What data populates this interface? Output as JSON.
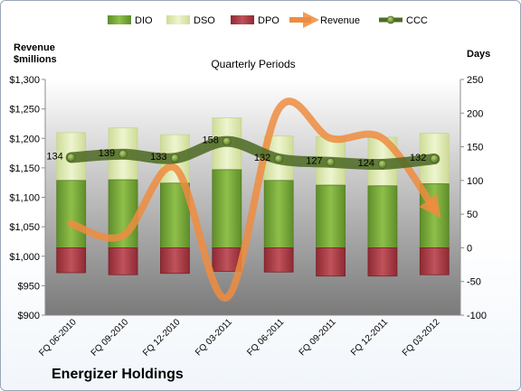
{
  "chart_data": {
    "type": "bar",
    "title": "Quarterly Periods",
    "left_axis_label_line1": "Revenue",
    "left_axis_label_line2": "$millions",
    "right_axis_label": "Days",
    "company": "Energizer Holdings",
    "categories": [
      "FQ 06-2010",
      "FQ 09-2010",
      "FQ 12-2010",
      "FQ 03-2011",
      "FQ 06-2011",
      "FQ 09-2011",
      "FQ 12-2011",
      "FQ 03-2012"
    ],
    "left_axis": {
      "min": 900,
      "max": 1300,
      "step": 50,
      "tick_labels": [
        "$900",
        "$950",
        "$1,000",
        "$1,050",
        "$1,100",
        "$1,150",
        "$1,200",
        "$1,250",
        "$1,300"
      ]
    },
    "right_axis": {
      "min": -100,
      "max": 250,
      "step": 50,
      "tick_labels": [
        "-100",
        "-50",
        "0",
        "50",
        "100",
        "150",
        "200",
        "250"
      ]
    },
    "series": [
      {
        "name": "DIO",
        "axis": "right",
        "kind": "bar",
        "color": "#77a53a",
        "values": [
          100,
          101,
          96,
          116,
          100,
          93,
          92,
          95
        ]
      },
      {
        "name": "DSO",
        "axis": "right",
        "kind": "bar",
        "color": "#dfeab6",
        "values": [
          171,
          178,
          168,
          193,
          166,
          165,
          164,
          170
        ]
      },
      {
        "name": "DPO",
        "axis": "right",
        "kind": "bar",
        "color": "#b23a44",
        "values": [
          -37,
          -40,
          -38,
          -35,
          -36,
          -42,
          -42,
          -40
        ]
      },
      {
        "name": "Revenue",
        "axis": "left",
        "kind": "line",
        "color": "#ee8c3f",
        "values": [
          1055,
          1035,
          1150,
          930,
          1250,
          1200,
          1200,
          1080
        ]
      },
      {
        "name": "CCC",
        "axis": "right",
        "kind": "line",
        "color": "#4f6b25",
        "values": [
          134,
          139,
          133,
          158,
          132,
          127,
          124,
          132
        ],
        "labels": [
          "134",
          "139",
          "133",
          "158",
          "132",
          "127",
          "124",
          "132"
        ]
      }
    ],
    "legend": {
      "position": "top"
    },
    "grid": false
  }
}
